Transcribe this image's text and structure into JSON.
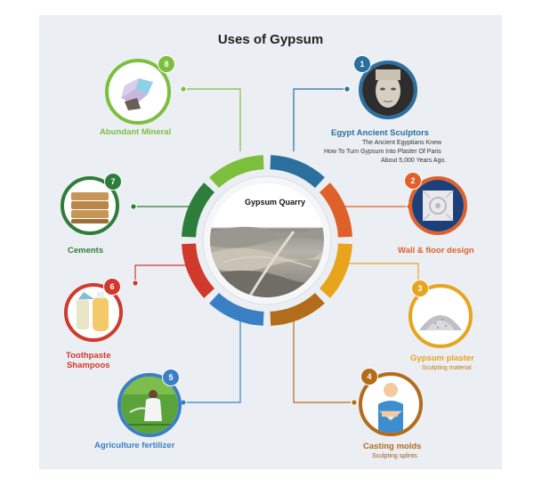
{
  "title": "Uses of Gypsum",
  "center": {
    "label": "Gypsum Quarry"
  },
  "uses": [
    {
      "number": "1",
      "label": "Egypt Ancient Sculptors",
      "description": [
        "The Ancient Egyptians Knew",
        "How To Turn Gypsum Into Plaster Of Paris",
        "About 5,000 Years Ago."
      ],
      "color": "#2a6f9e",
      "icon": "pharaoh-bust-icon"
    },
    {
      "number": "2",
      "label": "Wall & floor design",
      "color": "#e0602a",
      "icon": "ornament-tile-icon"
    },
    {
      "number": "3",
      "label": "Gypsum plaster",
      "sublabel": "Sculpting material",
      "color": "#e8a41c",
      "icon": "powder-pile-icon"
    },
    {
      "number": "4",
      "label": "Casting molds",
      "sublabel": "Sculpting splints",
      "color": "#b36b1c",
      "icon": "arm-sling-icon"
    },
    {
      "number": "5",
      "label": "Agriculture fertilizer",
      "color": "#3a7fc4",
      "icon": "farmer-field-icon"
    },
    {
      "number": "6",
      "label": "Toothpaste\nShampoos",
      "color": "#d0392b",
      "icon": "toiletry-bottles-icon"
    },
    {
      "number": "7",
      "label": "Cements",
      "color": "#2f7d3a",
      "icon": "cement-bags-icon"
    },
    {
      "number": "8",
      "label": "Abundant Mineral",
      "color": "#7bbf3d",
      "icon": "mineral-crystal-icon"
    }
  ]
}
